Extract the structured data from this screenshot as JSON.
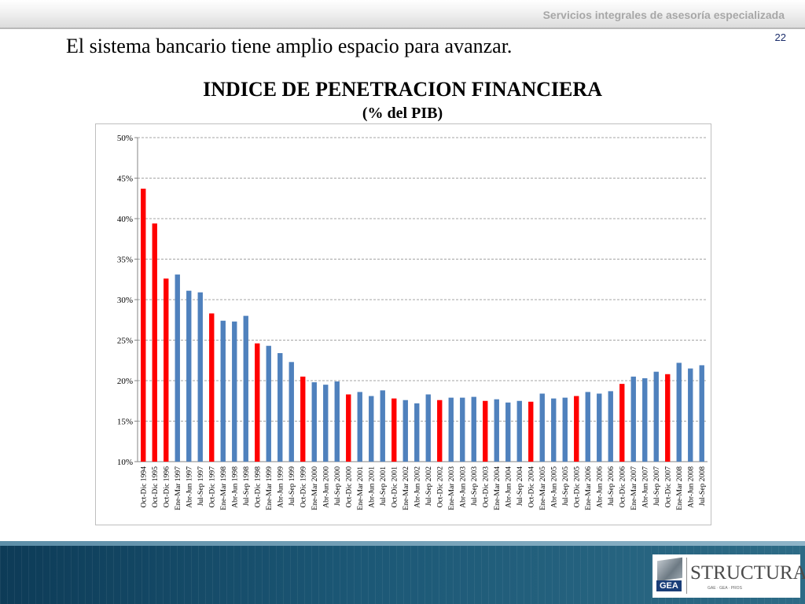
{
  "header": {
    "tagline": "Servicios integrales de asesoría especializada",
    "page_number": "22"
  },
  "slide": {
    "subtitle": "El sistema bancario tiene amplio espacio para avanzar."
  },
  "colors": {
    "blue_bar": "#4f81bd",
    "red_bar": "#ff0000",
    "grid": "#868686"
  },
  "logo": {
    "left_label": "GEA",
    "name": "STRUCTURA",
    "sub_line": "GAE · GEA · PROS"
  },
  "chart_data": {
    "type": "bar",
    "title": "INDICE DE PENETRACION FINANCIERA",
    "subtitle": "(% del PIB)",
    "xlabel": "",
    "ylabel": "",
    "ylim": [
      10,
      50
    ],
    "yticks": [
      "10%",
      "15%",
      "20%",
      "25%",
      "30%",
      "35%",
      "40%",
      "45%",
      "50%"
    ],
    "grid": true,
    "categories": [
      "Oct-Dic 1994",
      "Oct-Dic 1995",
      "Oct-Dic 1996",
      "Ene-Mar 1997",
      "Abr-Jun 1997",
      "Jul-Sep 1997",
      "Oct-Dic 1997",
      "Ene-Mar 1998",
      "Abr-Jun 1998",
      "Jul-Sep 1998",
      "Oct-Dic 1998",
      "Ene-Mar 1999",
      "Abr-Jun 1999",
      "Jul-Sep 1999",
      "Oct-Dic 1999",
      "Ene-Mar 2000",
      "Abr-Jun 2000",
      "Jul-Sep 2000",
      "Oct-Dic 2000",
      "Ene-Mar 2001",
      "Abr-Jun 2001",
      "Jul-Sep 2001",
      "Oct-Dic 2001",
      "Ene-Mar 2002",
      "Abr-Jun 2002",
      "Jul-Sep 2002",
      "Oct-Dic 2002",
      "Ene-Mar 2003",
      "Abr-Jun 2003",
      "Jul-Sep 2003",
      "Oct-Dic 2003",
      "Ene-Mar 2004",
      "Abr-Jun 2004",
      "Jul-Sep 2004",
      "Oct-Dic 2004",
      "Ene-Mar 2005",
      "Abr-Jun 2005",
      "Jul-Sep 2005",
      "Oct-Dic 2005",
      "Ene-Mar 2006",
      "Abr-Jun 2006",
      "Jul-Sep 2006",
      "Oct-Dic 2006",
      "Ene-Mar 2007",
      "Abr-Jun 2007",
      "Jul-Sep 2007",
      "Oct-Dic 2007",
      "Ene-Mar 2008",
      "Abr-Jun 2008",
      "Jul-Sep 2008"
    ],
    "values": [
      43.7,
      39.4,
      32.6,
      33.1,
      31.1,
      30.9,
      28.3,
      27.4,
      27.3,
      28.0,
      24.6,
      24.3,
      23.4,
      22.3,
      20.5,
      19.8,
      19.5,
      19.9,
      18.3,
      18.6,
      18.1,
      18.8,
      17.8,
      17.6,
      17.2,
      18.3,
      17.6,
      17.9,
      17.9,
      18.0,
      17.5,
      17.7,
      17.3,
      17.5,
      17.4,
      18.4,
      17.8,
      17.9,
      18.1,
      18.6,
      18.4,
      18.7,
      19.6,
      20.5,
      20.3,
      21.1,
      20.8,
      22.2,
      21.5,
      21.9
    ],
    "highlighted": [
      true,
      true,
      true,
      false,
      false,
      false,
      true,
      false,
      false,
      false,
      true,
      false,
      false,
      false,
      true,
      false,
      false,
      false,
      true,
      false,
      false,
      false,
      true,
      false,
      false,
      false,
      true,
      false,
      false,
      false,
      true,
      false,
      false,
      false,
      true,
      false,
      false,
      false,
      true,
      false,
      false,
      false,
      true,
      false,
      false,
      false,
      true,
      false,
      false,
      false
    ]
  }
}
